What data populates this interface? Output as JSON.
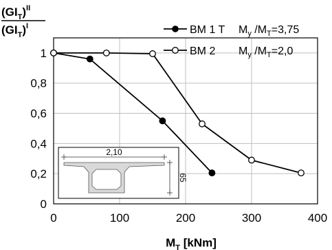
{
  "chart_data": {
    "type": "line",
    "xlabel": {
      "main": "M",
      "sub": "T",
      "unit": " [kNm]"
    },
    "ylabel": {
      "num_main": "(GI",
      "num_sub": "T",
      "num_close": ")",
      "num_sup": "II",
      "den_main": "(GI",
      "den_sub": "T",
      "den_close": ")",
      "den_sup": "I"
    },
    "xlim": [
      0,
      400
    ],
    "ylim": [
      0,
      1.1
    ],
    "xticks": [
      0,
      100,
      200,
      300,
      400
    ],
    "xtick_labels": [
      "0",
      "100",
      "200",
      "300",
      "400"
    ],
    "yticks": [
      0,
      0.2,
      0.4,
      0.6,
      0.8,
      1
    ],
    "ytick_labels": [
      "0",
      "0,2",
      "0,4",
      "0,6",
      "0,8",
      "1"
    ],
    "grid": true,
    "legend_position": "top-right",
    "series": [
      {
        "name": "BM 1 T",
        "ratio_main": "M",
        "ratio_sub_a": "y",
        "ratio_mid": " /M",
        "ratio_sub_b": "T",
        "ratio_value": "=3,75",
        "marker": "filled-circle",
        "x": [
          0,
          55,
          165,
          240
        ],
        "y": [
          1.0,
          0.96,
          0.55,
          0.205
        ]
      },
      {
        "name": "BM 2",
        "ratio_main": "M",
        "ratio_sub_a": "y",
        "ratio_mid": " /M",
        "ratio_sub_b": "T",
        "ratio_value": "=2,0",
        "marker": "open-circle",
        "x": [
          0,
          80,
          150,
          225,
          300,
          375
        ],
        "y": [
          1.0,
          1.0,
          0.995,
          0.53,
          0.29,
          0.205
        ]
      }
    ],
    "inset": {
      "width_label": "2,10",
      "height_label": "65"
    },
    "colors": {
      "line": "#000000",
      "grid": "#bfbfbf",
      "inset_fill": "#d9d9d9"
    }
  }
}
